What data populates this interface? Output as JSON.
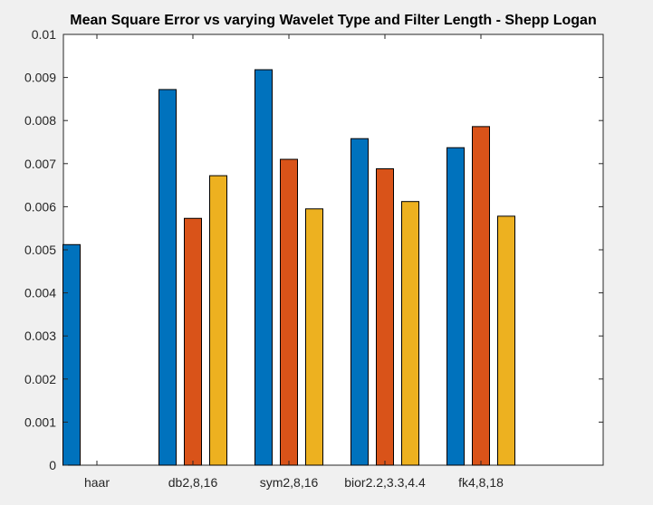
{
  "chart_data": {
    "type": "bar",
    "title": "Mean Square Error vs varying Wavelet Type and Filter Length - Shepp Logan",
    "xlabel": "",
    "ylabel": "",
    "categories": [
      "haar",
      "db2,8,16",
      "sym2,8,16",
      "bior2.2,3.3,4.4",
      "fk4,8,18"
    ],
    "series": [
      {
        "color": "#0072bd",
        "values": [
          0.00512,
          0.00872,
          0.00918,
          0.00758,
          0.00737
        ]
      },
      {
        "color": "#d95319",
        "values": [
          null,
          0.00573,
          0.0071,
          0.00688,
          0.00786
        ]
      },
      {
        "color": "#edb120",
        "values": [
          null,
          0.00672,
          0.00595,
          0.00612,
          0.00578
        ]
      }
    ],
    "ylim": [
      0,
      0.01
    ],
    "yticks": [
      "0",
      "0.001",
      "0.002",
      "0.003",
      "0.004",
      "0.005",
      "0.006",
      "0.007",
      "0.008",
      "0.009",
      "0.01"
    ],
    "grid": false,
    "legend": "none"
  }
}
